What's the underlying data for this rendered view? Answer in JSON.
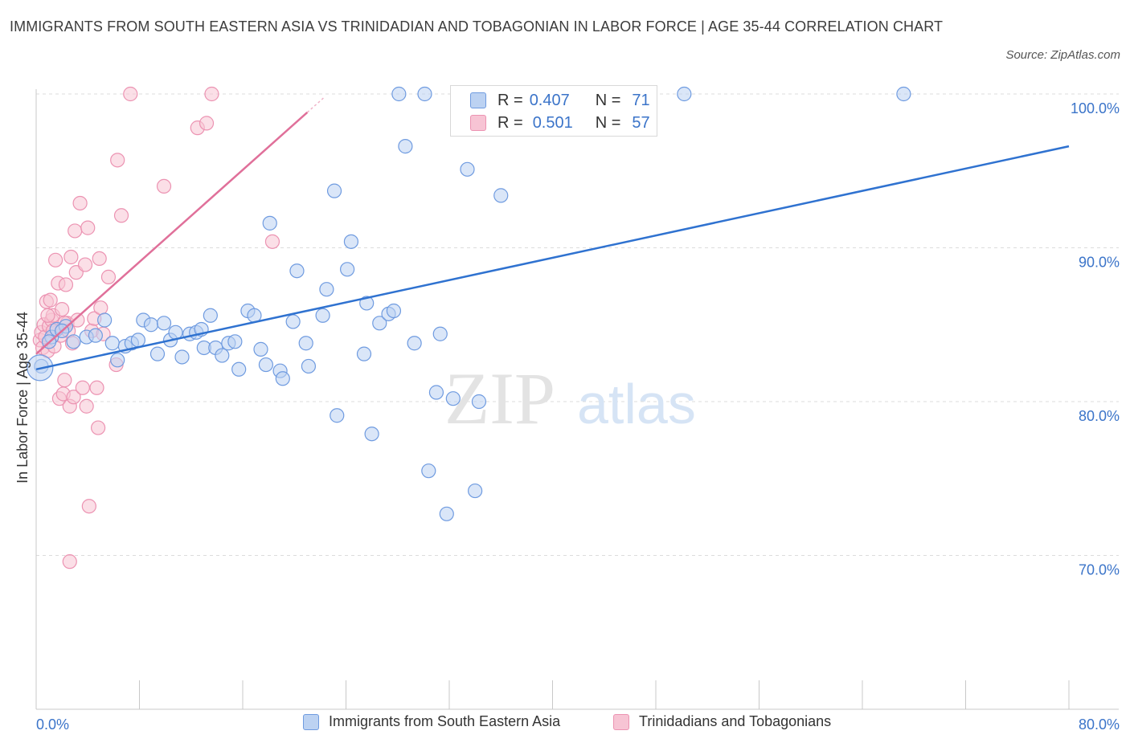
{
  "title": "IMMIGRANTS FROM SOUTH EASTERN ASIA VS TRINIDADIAN AND TOBAGONIAN IN LABOR FORCE | AGE 35-44 CORRELATION CHART",
  "source": "Source: ZipAtlas.com",
  "watermark": {
    "zip": "ZIP",
    "atlas": "atlas"
  },
  "colors": {
    "blue": "#3b74c9",
    "blue_line": "#2f72d0",
    "blue_fill": "#bcd2f2",
    "pink": "#e0709a",
    "pink_fill": "#f7c4d4",
    "grid": "#dcdcdc"
  },
  "legend": {
    "rows": [
      {
        "r_label": "R =",
        "r_value": "0.407",
        "n_label": "N =",
        "n_value": "71"
      },
      {
        "r_label": "R =",
        "r_value": "0.501",
        "n_label": "N =",
        "n_value": "57"
      }
    ]
  },
  "chart_data": {
    "type": "scatter",
    "ylabel": "In Labor Force | Age 35-44",
    "xlim": [
      0,
      80
    ],
    "ylim": [
      60,
      100
    ],
    "x_tick_labels": [
      "0.0%",
      "80.0%"
    ],
    "y_tick_labels": [
      "100.0%",
      "90.0%",
      "80.0%",
      "70.0%"
    ],
    "y_ticks": [
      100,
      90,
      80,
      70
    ],
    "series": [
      {
        "name": "Immigrants from South Eastern Asia",
        "color": "#3b74c9",
        "trend": {
          "x": [
            0,
            80
          ],
          "y": [
            82.1,
            96.6
          ]
        },
        "points": [
          [
            0.4,
            82.3
          ],
          [
            1.2,
            84.2
          ],
          [
            1.6,
            84.7
          ],
          [
            2.3,
            84.9
          ],
          [
            2.9,
            83.9
          ],
          [
            3.9,
            84.2
          ],
          [
            4.6,
            84.3
          ],
          [
            5.3,
            85.3
          ],
          [
            5.9,
            83.8
          ],
          [
            6.3,
            82.7
          ],
          [
            6.9,
            83.6
          ],
          [
            7.4,
            83.8
          ],
          [
            7.9,
            84.0
          ],
          [
            8.3,
            85.3
          ],
          [
            8.9,
            85.0
          ],
          [
            9.4,
            83.1
          ],
          [
            9.9,
            85.1
          ],
          [
            10.4,
            84.0
          ],
          [
            10.8,
            84.5
          ],
          [
            11.3,
            82.9
          ],
          [
            11.9,
            84.4
          ],
          [
            12.4,
            84.5
          ],
          [
            13.0,
            83.5
          ],
          [
            13.5,
            85.6
          ],
          [
            13.9,
            83.5
          ],
          [
            14.4,
            83.0
          ],
          [
            14.9,
            83.8
          ],
          [
            15.4,
            83.9
          ],
          [
            15.7,
            82.1
          ],
          [
            16.4,
            85.9
          ],
          [
            16.9,
            85.6
          ],
          [
            17.4,
            83.4
          ],
          [
            17.8,
            82.4
          ],
          [
            18.1,
            91.6
          ],
          [
            18.9,
            82.0
          ],
          [
            19.1,
            81.5
          ],
          [
            19.9,
            85.2
          ],
          [
            20.2,
            88.5
          ],
          [
            20.9,
            83.8
          ],
          [
            21.1,
            82.3
          ],
          [
            22.2,
            85.6
          ],
          [
            22.5,
            87.3
          ],
          [
            23.1,
            93.7
          ],
          [
            23.3,
            79.1
          ],
          [
            24.1,
            88.6
          ],
          [
            24.4,
            90.4
          ],
          [
            25.4,
            83.1
          ],
          [
            25.6,
            86.4
          ],
          [
            26.0,
            77.9
          ],
          [
            26.6,
            85.1
          ],
          [
            27.3,
            85.7
          ],
          [
            27.7,
            85.9
          ],
          [
            28.1,
            100.0
          ],
          [
            28.6,
            96.6
          ],
          [
            29.3,
            83.8
          ],
          [
            30.1,
            100.0
          ],
          [
            30.4,
            75.5
          ],
          [
            31.0,
            80.6
          ],
          [
            31.3,
            84.4
          ],
          [
            31.8,
            72.7
          ],
          [
            32.3,
            80.2
          ],
          [
            33.4,
            95.1
          ],
          [
            34.0,
            74.2
          ],
          [
            34.3,
            80.0
          ],
          [
            36.0,
            93.4
          ],
          [
            43.5,
            100.0
          ],
          [
            50.2,
            100.0
          ],
          [
            67.2,
            100.0
          ],
          [
            1.0,
            83.9
          ],
          [
            2.0,
            84.6
          ],
          [
            12.8,
            84.7
          ]
        ]
      },
      {
        "name": "Trinidadians and Tobagonians",
        "color": "#e0709a",
        "trend": {
          "x": [
            0,
            21
          ],
          "y": [
            83.1,
            98.8
          ]
        },
        "points": [
          [
            0.3,
            84.0
          ],
          [
            0.4,
            84.5
          ],
          [
            0.5,
            83.5
          ],
          [
            0.6,
            85.0
          ],
          [
            0.7,
            84.2
          ],
          [
            0.8,
            86.5
          ],
          [
            0.9,
            83.3
          ],
          [
            1.0,
            84.9
          ],
          [
            1.1,
            86.6
          ],
          [
            1.2,
            85.3
          ],
          [
            1.3,
            85.6
          ],
          [
            1.4,
            83.6
          ],
          [
            1.5,
            89.2
          ],
          [
            1.6,
            84.7
          ],
          [
            1.7,
            87.7
          ],
          [
            1.8,
            80.2
          ],
          [
            1.9,
            84.3
          ],
          [
            2.0,
            86.0
          ],
          [
            2.1,
            80.5
          ],
          [
            2.2,
            81.4
          ],
          [
            2.3,
            87.6
          ],
          [
            2.4,
            85.1
          ],
          [
            2.5,
            84.6
          ],
          [
            2.6,
            79.7
          ],
          [
            2.7,
            89.4
          ],
          [
            2.8,
            83.8
          ],
          [
            2.9,
            80.3
          ],
          [
            3.0,
            91.1
          ],
          [
            3.1,
            88.4
          ],
          [
            3.2,
            85.3
          ],
          [
            3.4,
            92.9
          ],
          [
            3.6,
            80.9
          ],
          [
            3.8,
            88.9
          ],
          [
            3.9,
            79.7
          ],
          [
            4.0,
            91.3
          ],
          [
            4.1,
            73.2
          ],
          [
            4.3,
            84.6
          ],
          [
            4.5,
            85.4
          ],
          [
            4.7,
            80.9
          ],
          [
            4.8,
            78.3
          ],
          [
            4.9,
            89.3
          ],
          [
            5.0,
            86.1
          ],
          [
            5.2,
            84.4
          ],
          [
            5.6,
            88.1
          ],
          [
            6.2,
            82.4
          ],
          [
            6.3,
            95.7
          ],
          [
            6.6,
            92.1
          ],
          [
            7.3,
            100.0
          ],
          [
            9.9,
            94.0
          ],
          [
            12.5,
            97.8
          ],
          [
            13.2,
            98.1
          ],
          [
            13.6,
            100.0
          ],
          [
            18.3,
            90.4
          ],
          [
            2.6,
            69.6
          ],
          [
            1.3,
            84.6
          ],
          [
            0.9,
            85.6
          ],
          [
            2.2,
            85.1
          ]
        ]
      }
    ]
  }
}
